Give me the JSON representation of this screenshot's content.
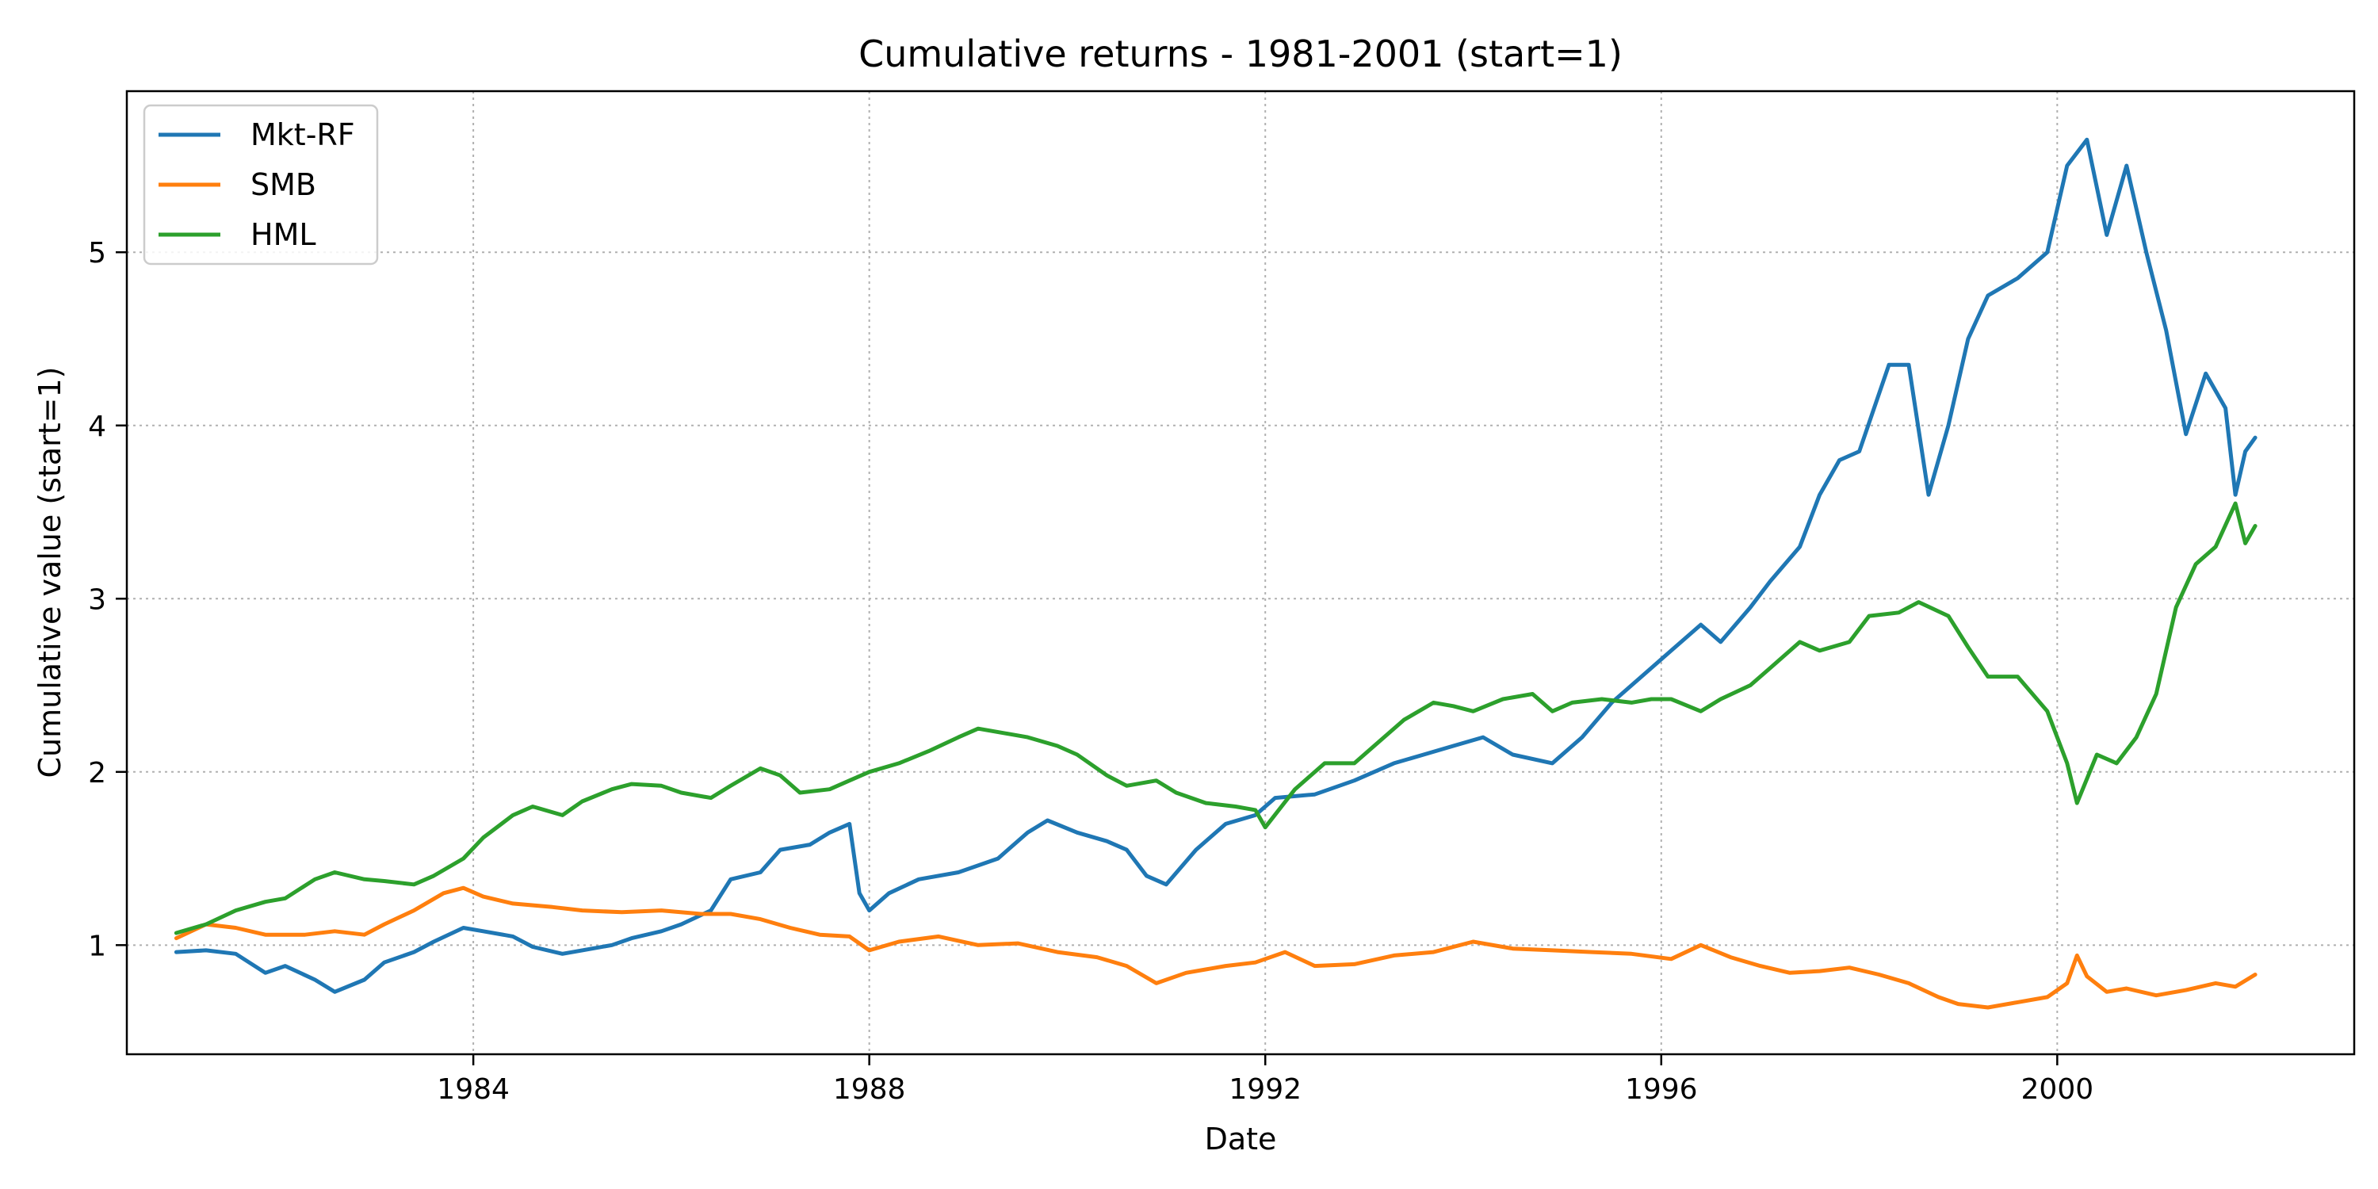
{
  "chart_data": {
    "type": "line",
    "title": "Cumulative returns - 1981-2001 (start=1)",
    "xlabel": "Date",
    "ylabel": "Cumulative value (start=1)",
    "xlim": [
      1980.5,
      2003.0
    ],
    "ylim": [
      0.37,
      5.93
    ],
    "x_ticks": [
      1984,
      1988,
      1992,
      1996,
      2000
    ],
    "y_ticks": [
      1,
      2,
      3,
      4,
      5
    ],
    "grid": true,
    "legend_position": "top-left",
    "series": [
      {
        "name": "Mkt-RF",
        "color": "#1f77b4",
        "points": [
          [
            1981.0,
            0.96
          ],
          [
            1981.3,
            0.97
          ],
          [
            1981.6,
            0.95
          ],
          [
            1981.9,
            0.84
          ],
          [
            1982.1,
            0.88
          ],
          [
            1982.4,
            0.8
          ],
          [
            1982.6,
            0.73
          ],
          [
            1982.9,
            0.8
          ],
          [
            1983.1,
            0.9
          ],
          [
            1983.4,
            0.96
          ],
          [
            1983.6,
            1.02
          ],
          [
            1983.9,
            1.1
          ],
          [
            1984.1,
            1.08
          ],
          [
            1984.4,
            1.05
          ],
          [
            1984.6,
            0.99
          ],
          [
            1984.9,
            0.95
          ],
          [
            1985.1,
            0.97
          ],
          [
            1985.4,
            1.0
          ],
          [
            1985.6,
            1.04
          ],
          [
            1985.9,
            1.08
          ],
          [
            1986.1,
            1.12
          ],
          [
            1986.4,
            1.2
          ],
          [
            1986.6,
            1.38
          ],
          [
            1986.9,
            1.42
          ],
          [
            1987.1,
            1.55
          ],
          [
            1987.4,
            1.58
          ],
          [
            1987.6,
            1.65
          ],
          [
            1987.8,
            1.7
          ],
          [
            1987.9,
            1.3
          ],
          [
            1988.0,
            1.2
          ],
          [
            1988.2,
            1.3
          ],
          [
            1988.5,
            1.38
          ],
          [
            1988.9,
            1.42
          ],
          [
            1989.3,
            1.5
          ],
          [
            1989.6,
            1.65
          ],
          [
            1989.8,
            1.72
          ],
          [
            1990.1,
            1.65
          ],
          [
            1990.4,
            1.6
          ],
          [
            1990.6,
            1.55
          ],
          [
            1990.8,
            1.4
          ],
          [
            1991.0,
            1.35
          ],
          [
            1991.3,
            1.55
          ],
          [
            1991.6,
            1.7
          ],
          [
            1991.9,
            1.75
          ],
          [
            1992.1,
            1.85
          ],
          [
            1992.5,
            1.87
          ],
          [
            1992.9,
            1.95
          ],
          [
            1993.3,
            2.05
          ],
          [
            1993.6,
            2.1
          ],
          [
            1993.9,
            2.15
          ],
          [
            1994.2,
            2.2
          ],
          [
            1994.5,
            2.1
          ],
          [
            1994.9,
            2.05
          ],
          [
            1995.2,
            2.2
          ],
          [
            1995.5,
            2.4
          ],
          [
            1995.8,
            2.55
          ],
          [
            1996.1,
            2.7
          ],
          [
            1996.4,
            2.85
          ],
          [
            1996.6,
            2.75
          ],
          [
            1996.9,
            2.95
          ],
          [
            1997.1,
            3.1
          ],
          [
            1997.4,
            3.3
          ],
          [
            1997.6,
            3.6
          ],
          [
            1997.8,
            3.8
          ],
          [
            1998.0,
            3.85
          ],
          [
            1998.3,
            4.35
          ],
          [
            1998.5,
            4.35
          ],
          [
            1998.7,
            3.6
          ],
          [
            1998.9,
            4.0
          ],
          [
            1999.1,
            4.5
          ],
          [
            1999.3,
            4.75
          ],
          [
            1999.6,
            4.85
          ],
          [
            1999.9,
            5.0
          ],
          [
            2000.1,
            5.5
          ],
          [
            2000.3,
            5.65
          ],
          [
            2000.5,
            5.1
          ],
          [
            2000.7,
            5.5
          ],
          [
            2000.9,
            5.0
          ],
          [
            2001.1,
            4.55
          ],
          [
            2001.3,
            3.95
          ],
          [
            2001.5,
            4.3
          ],
          [
            2001.7,
            4.1
          ],
          [
            2001.8,
            3.6
          ],
          [
            2001.9,
            3.85
          ],
          [
            2002.0,
            3.93
          ]
        ]
      },
      {
        "name": "SMB",
        "color": "#ff7f0e",
        "points": [
          [
            1981.0,
            1.04
          ],
          [
            1981.3,
            1.12
          ],
          [
            1981.6,
            1.1
          ],
          [
            1981.9,
            1.06
          ],
          [
            1982.3,
            1.06
          ],
          [
            1982.6,
            1.08
          ],
          [
            1982.9,
            1.06
          ],
          [
            1983.1,
            1.12
          ],
          [
            1983.4,
            1.2
          ],
          [
            1983.7,
            1.3
          ],
          [
            1983.9,
            1.33
          ],
          [
            1984.1,
            1.28
          ],
          [
            1984.4,
            1.24
          ],
          [
            1984.8,
            1.22
          ],
          [
            1985.1,
            1.2
          ],
          [
            1985.5,
            1.19
          ],
          [
            1985.9,
            1.2
          ],
          [
            1986.3,
            1.18
          ],
          [
            1986.6,
            1.18
          ],
          [
            1986.9,
            1.15
          ],
          [
            1987.2,
            1.1
          ],
          [
            1987.5,
            1.06
          ],
          [
            1987.8,
            1.05
          ],
          [
            1988.0,
            0.97
          ],
          [
            1988.3,
            1.02
          ],
          [
            1988.7,
            1.05
          ],
          [
            1989.1,
            1.0
          ],
          [
            1989.5,
            1.01
          ],
          [
            1989.9,
            0.96
          ],
          [
            1990.3,
            0.93
          ],
          [
            1990.6,
            0.88
          ],
          [
            1990.9,
            0.78
          ],
          [
            1991.2,
            0.84
          ],
          [
            1991.6,
            0.88
          ],
          [
            1991.9,
            0.9
          ],
          [
            1992.2,
            0.96
          ],
          [
            1992.5,
            0.88
          ],
          [
            1992.9,
            0.89
          ],
          [
            1993.3,
            0.94
          ],
          [
            1993.7,
            0.96
          ],
          [
            1994.1,
            1.02
          ],
          [
            1994.5,
            0.98
          ],
          [
            1994.9,
            0.97
          ],
          [
            1995.3,
            0.96
          ],
          [
            1995.7,
            0.95
          ],
          [
            1996.1,
            0.92
          ],
          [
            1996.4,
            1.0
          ],
          [
            1996.7,
            0.93
          ],
          [
            1997.0,
            0.88
          ],
          [
            1997.3,
            0.84
          ],
          [
            1997.6,
            0.85
          ],
          [
            1997.9,
            0.87
          ],
          [
            1998.2,
            0.83
          ],
          [
            1998.5,
            0.78
          ],
          [
            1998.8,
            0.7
          ],
          [
            1999.0,
            0.66
          ],
          [
            1999.3,
            0.64
          ],
          [
            1999.6,
            0.67
          ],
          [
            1999.9,
            0.7
          ],
          [
            2000.1,
            0.78
          ],
          [
            2000.2,
            0.94
          ],
          [
            2000.3,
            0.82
          ],
          [
            2000.5,
            0.73
          ],
          [
            2000.7,
            0.75
          ],
          [
            2001.0,
            0.71
          ],
          [
            2001.3,
            0.74
          ],
          [
            2001.6,
            0.78
          ],
          [
            2001.8,
            0.76
          ],
          [
            2002.0,
            0.83
          ]
        ]
      },
      {
        "name": "HML",
        "color": "#2ca02c",
        "points": [
          [
            1981.0,
            1.07
          ],
          [
            1981.3,
            1.12
          ],
          [
            1981.6,
            1.2
          ],
          [
            1981.9,
            1.25
          ],
          [
            1982.1,
            1.27
          ],
          [
            1982.4,
            1.38
          ],
          [
            1982.6,
            1.42
          ],
          [
            1982.9,
            1.38
          ],
          [
            1983.1,
            1.37
          ],
          [
            1983.4,
            1.35
          ],
          [
            1983.6,
            1.4
          ],
          [
            1983.9,
            1.5
          ],
          [
            1984.1,
            1.62
          ],
          [
            1984.4,
            1.75
          ],
          [
            1984.6,
            1.8
          ],
          [
            1984.9,
            1.75
          ],
          [
            1985.1,
            1.83
          ],
          [
            1985.4,
            1.9
          ],
          [
            1985.6,
            1.93
          ],
          [
            1985.9,
            1.92
          ],
          [
            1986.1,
            1.88
          ],
          [
            1986.4,
            1.85
          ],
          [
            1986.6,
            1.92
          ],
          [
            1986.9,
            2.02
          ],
          [
            1987.1,
            1.98
          ],
          [
            1987.3,
            1.88
          ],
          [
            1987.6,
            1.9
          ],
          [
            1987.8,
            1.95
          ],
          [
            1988.0,
            2.0
          ],
          [
            1988.3,
            2.05
          ],
          [
            1988.6,
            2.12
          ],
          [
            1988.9,
            2.2
          ],
          [
            1989.1,
            2.25
          ],
          [
            1989.4,
            2.22
          ],
          [
            1989.6,
            2.2
          ],
          [
            1989.9,
            2.15
          ],
          [
            1990.1,
            2.1
          ],
          [
            1990.4,
            1.98
          ],
          [
            1990.6,
            1.92
          ],
          [
            1990.9,
            1.95
          ],
          [
            1991.1,
            1.88
          ],
          [
            1991.4,
            1.82
          ],
          [
            1991.7,
            1.8
          ],
          [
            1991.9,
            1.78
          ],
          [
            1992.0,
            1.68
          ],
          [
            1992.3,
            1.9
          ],
          [
            1992.6,
            2.05
          ],
          [
            1992.9,
            2.05
          ],
          [
            1993.1,
            2.15
          ],
          [
            1993.4,
            2.3
          ],
          [
            1993.7,
            2.4
          ],
          [
            1993.9,
            2.38
          ],
          [
            1994.1,
            2.35
          ],
          [
            1994.4,
            2.42
          ],
          [
            1994.7,
            2.45
          ],
          [
            1994.9,
            2.35
          ],
          [
            1995.1,
            2.4
          ],
          [
            1995.4,
            2.42
          ],
          [
            1995.7,
            2.4
          ],
          [
            1995.9,
            2.42
          ],
          [
            1996.1,
            2.42
          ],
          [
            1996.4,
            2.35
          ],
          [
            1996.6,
            2.42
          ],
          [
            1996.9,
            2.5
          ],
          [
            1997.1,
            2.6
          ],
          [
            1997.4,
            2.75
          ],
          [
            1997.6,
            2.7
          ],
          [
            1997.9,
            2.75
          ],
          [
            1998.1,
            2.9
          ],
          [
            1998.4,
            2.92
          ],
          [
            1998.6,
            2.98
          ],
          [
            1998.9,
            2.9
          ],
          [
            1999.1,
            2.72
          ],
          [
            1999.3,
            2.55
          ],
          [
            1999.6,
            2.55
          ],
          [
            1999.9,
            2.35
          ],
          [
            2000.1,
            2.05
          ],
          [
            2000.2,
            1.82
          ],
          [
            2000.4,
            2.1
          ],
          [
            2000.6,
            2.05
          ],
          [
            2000.8,
            2.2
          ],
          [
            2001.0,
            2.45
          ],
          [
            2001.2,
            2.95
          ],
          [
            2001.4,
            3.2
          ],
          [
            2001.6,
            3.3
          ],
          [
            2001.8,
            3.55
          ],
          [
            2001.9,
            3.32
          ],
          [
            2002.0,
            3.42
          ]
        ]
      }
    ]
  }
}
